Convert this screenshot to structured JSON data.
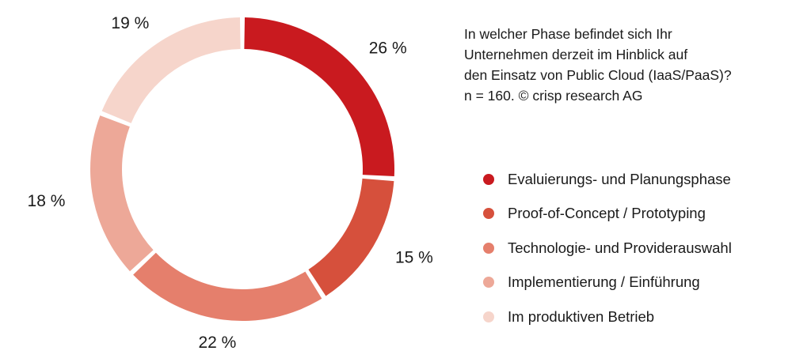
{
  "chart_data": {
    "type": "pie",
    "variant": "donut",
    "title_lines": [
      "In welcher Phase befindet sich Ihr",
      "Unternehmen derzeit im Hinblick auf",
      "den Einsatz von Public Cloud (IaaS/PaaS)?",
      "n = 160. © crisp research AG"
    ],
    "slices": [
      {
        "label": "Evaluierungs- und Planungsphase",
        "value": 26,
        "display": "26 %",
        "color": "#c91a1f"
      },
      {
        "label": "Proof-of-Concept / Prototyping",
        "value": 15,
        "display": "15 %",
        "color": "#d6503c"
      },
      {
        "label": "Technologie- und Providerauswahl",
        "value": 22,
        "display": "22 %",
        "color": "#e57f6c"
      },
      {
        "label": "Implementierung / Einführung",
        "value": 18,
        "display": "18 %",
        "color": "#eda898"
      },
      {
        "label": "Im produktiven Betrieb",
        "value": 19,
        "display": "19 %",
        "color": "#f6d5cb"
      }
    ],
    "legend_position": "right",
    "start_angle_deg": 0,
    "direction": "clockwise"
  }
}
